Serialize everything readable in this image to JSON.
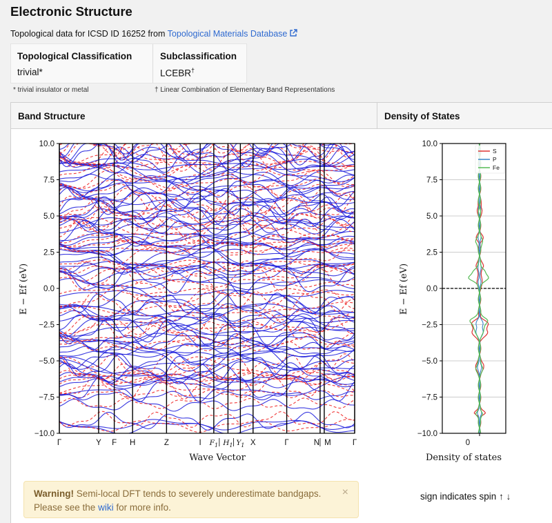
{
  "page": {
    "title": "Electronic Structure"
  },
  "intro": {
    "text": "Topological data for ICSD ID 16252 from ",
    "link": "Topological Materials Database"
  },
  "topology": {
    "class_header": "Topological Classification",
    "class_value": "trivial*",
    "sub_header": "Subclassification",
    "sub_value": "LCEBR",
    "sub_mark": "†"
  },
  "footnotes": {
    "trivial": "* trivial insulator or metal",
    "lcebr": "† Linear Combination of Elementary Band Representations"
  },
  "band_panel": {
    "title": "Band Structure"
  },
  "dos_panel": {
    "title": "Density of States"
  },
  "chart_data": [
    {
      "type": "line",
      "title": "Band Structure",
      "xlabel": "Wave Vector",
      "ylabel": "E − Ef (eV)",
      "ylim": [
        -10,
        10
      ],
      "yticks": [
        "10.0",
        "7.5",
        "5.0",
        "2.5",
        "0.0",
        "−2.5",
        "−5.0",
        "−7.5",
        "−10.0"
      ],
      "xticks": [
        "Γ",
        "Y",
        "F",
        "H",
        "Z",
        "I",
        "F1",
        "H1",
        "Y1",
        "X",
        "Γ",
        "N",
        "M",
        "Γ"
      ],
      "series": [
        {
          "style": "solid",
          "color": "#2222dd"
        },
        {
          "style": "dashed",
          "color": "#ee2222"
        }
      ]
    },
    {
      "type": "line",
      "title": "Density of States",
      "xlabel": "Density of states",
      "ylabel": "E − Ef (eV)",
      "ylim": [
        -10,
        10
      ],
      "yticks": [
        "10.0",
        "7.5",
        "5.0",
        "2.5",
        "0.0",
        "−2.5",
        "−5.0",
        "−7.5",
        "−10.0"
      ],
      "xticks": [
        "0"
      ],
      "legend": "top-right",
      "series": [
        {
          "name": "S",
          "color": "#dd3333"
        },
        {
          "name": "P",
          "color": "#3a86c8"
        },
        {
          "name": "Fe",
          "color": "#55bb55"
        }
      ]
    }
  ],
  "warning": {
    "strong": "Warning!",
    "text": " Semi-local DFT tends to severely underestimate bandgaps.",
    "line2_pre": "Please see the ",
    "link": "wiki",
    "line2_post": " for more info.",
    "close": "×"
  },
  "spin_note": "sign indicates spin ↑ ↓"
}
